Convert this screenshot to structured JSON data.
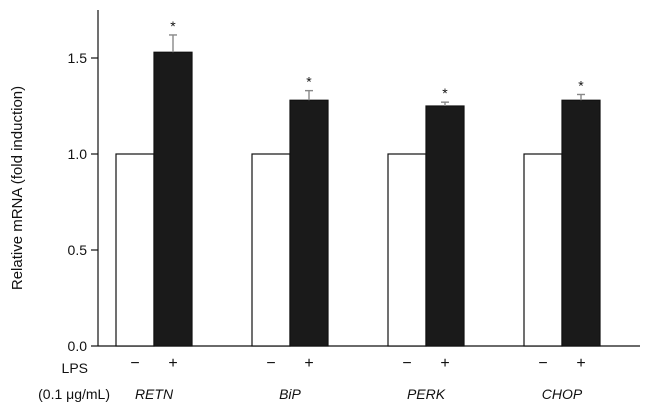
{
  "chart_data": {
    "type": "bar",
    "ylabel": "Relative mRNA (fold induction)",
    "ylim": [
      0,
      1.75
    ],
    "yticks": [
      "0.0",
      "0.5",
      "1.0",
      "1.5"
    ],
    "ytick_values": [
      0,
      0.5,
      1.0,
      1.5
    ],
    "categories": [
      "RETN",
      "BiP",
      "PERK",
      "CHOP"
    ],
    "condition_row_label": "LPS",
    "condition_row_sublabel": "(0.1 μg/mL)",
    "conditions": [
      "−",
      "+"
    ],
    "series": [
      {
        "condition": "−",
        "color": "#ffffff",
        "values": [
          1.0,
          1.0,
          1.0,
          1.0
        ],
        "errors": [
          0,
          0,
          0,
          0
        ]
      },
      {
        "condition": "+",
        "color": "#1a1a1a",
        "values": [
          1.53,
          1.28,
          1.25,
          1.28
        ],
        "errors": [
          0.09,
          0.05,
          0.02,
          0.03
        ]
      }
    ],
    "significance_marker": "*",
    "significance": [
      false,
      false,
      false,
      false,
      true,
      true,
      true,
      true
    ]
  }
}
